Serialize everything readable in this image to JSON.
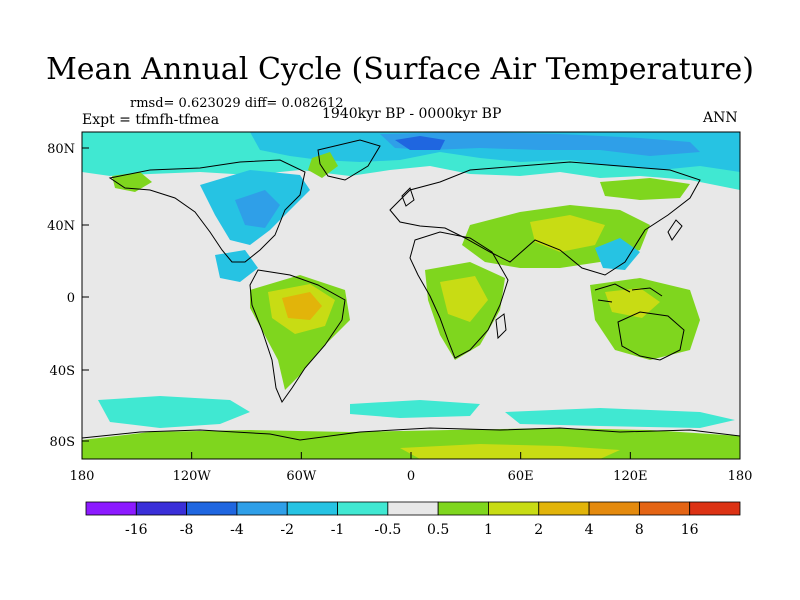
{
  "title": "Mean Annual Cycle (Surface Air Temperature)",
  "stats": "rmsd= 0.623029 diff= 0.082612",
  "experiment": "Expt = tfmfh-tfmea",
  "period": "1940kyr BP - 0000kyr BP",
  "season": "ANN",
  "lat_labels": [
    "80N",
    "40N",
    "0",
    "40S",
    "80S"
  ],
  "lon_labels": [
    "180",
    "120W",
    "60W",
    "0",
    "60E",
    "120E",
    "180"
  ],
  "colorbar": {
    "colors": [
      "#8c1aff",
      "#3a2fd8",
      "#1f66e0",
      "#2f9fe8",
      "#26c3e3",
      "#40e8d2",
      "#e8e8e8",
      "#7fd61e",
      "#c8dc14",
      "#e2b40a",
      "#e48a0e",
      "#e46414",
      "#dc3214"
    ],
    "labels": [
      "-16",
      "-8",
      "-4",
      "-2",
      "-1",
      "-0.5",
      "0.5",
      "1",
      "2",
      "4",
      "8",
      "16"
    ]
  }
}
